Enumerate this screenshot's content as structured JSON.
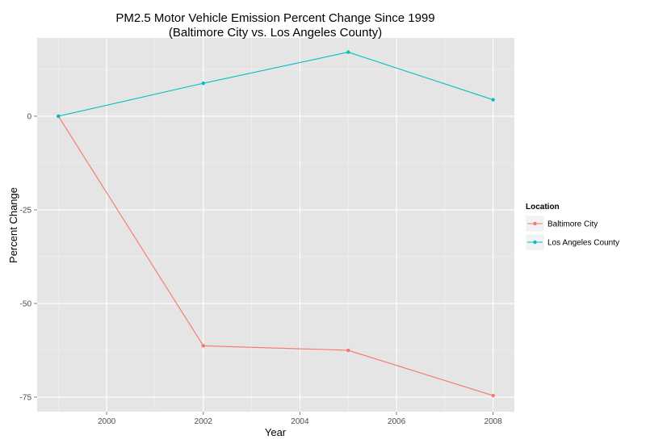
{
  "chart_data": {
    "type": "line",
    "title_lines": [
      "PM2.5 Motor Vehicle Emission Percent Change Since 1999",
      "(Baltimore City vs. Los Angeles County)"
    ],
    "xlabel": "Year",
    "ylabel": "Percent Change",
    "x": [
      1999,
      2002,
      2005,
      2008
    ],
    "x_ticks": [
      2000,
      2002,
      2004,
      2006,
      2008
    ],
    "x_tick_labels": [
      "2000",
      "2002",
      "2004",
      "2006",
      "2008"
    ],
    "y_ticks": [
      0,
      -25,
      -50,
      -75
    ],
    "y_tick_labels": [
      "0",
      "-25",
      "-50",
      "-75"
    ],
    "xlim": [
      1998.56,
      2008.44
    ],
    "ylim": [
      -78.9,
      20.9
    ],
    "grid": true,
    "legend": {
      "title": "Location",
      "placement": "right"
    },
    "series": [
      {
        "name": "Baltimore City",
        "color": "#F8766D",
        "values": [
          0,
          -61.3,
          -62.5,
          -74.6
        ]
      },
      {
        "name": "Los Angeles County",
        "color": "#00BFC4",
        "values": [
          0,
          8.8,
          17.1,
          4.4
        ]
      }
    ]
  }
}
